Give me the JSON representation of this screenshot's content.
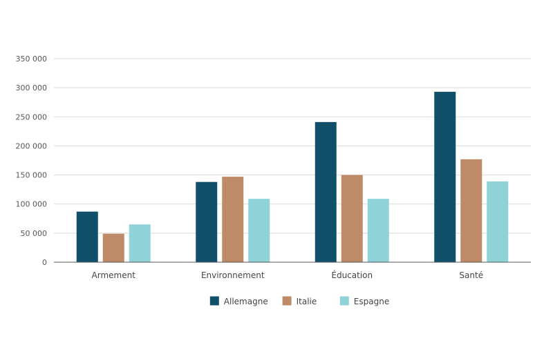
{
  "chart_data": {
    "type": "bar",
    "title": "",
    "xlabel": "",
    "ylabel": "",
    "categories": [
      "Armement",
      "Environnement",
      "Éducation",
      "Santé"
    ],
    "series": [
      {
        "name": "Allemagne",
        "color": "#10506b",
        "values": [
          87000,
          138000,
          241000,
          293000
        ]
      },
      {
        "name": "Italie",
        "color": "#bf8a68",
        "values": [
          49000,
          147000,
          150000,
          177000
        ]
      },
      {
        "name": "Espagne",
        "color": "#8fd3d8",
        "values": [
          65000,
          109000,
          109000,
          139000
        ]
      }
    ],
    "ylim": [
      0,
      350000
    ],
    "yticks": [
      0,
      50000,
      100000,
      150000,
      200000,
      250000,
      300000,
      350000
    ],
    "ytick_labels": [
      "0",
      "50 000",
      "100 000",
      "150 000",
      "200 000",
      "250 000",
      "300 000",
      "350 000"
    ],
    "grid": true,
    "legend_position": "bottom"
  }
}
